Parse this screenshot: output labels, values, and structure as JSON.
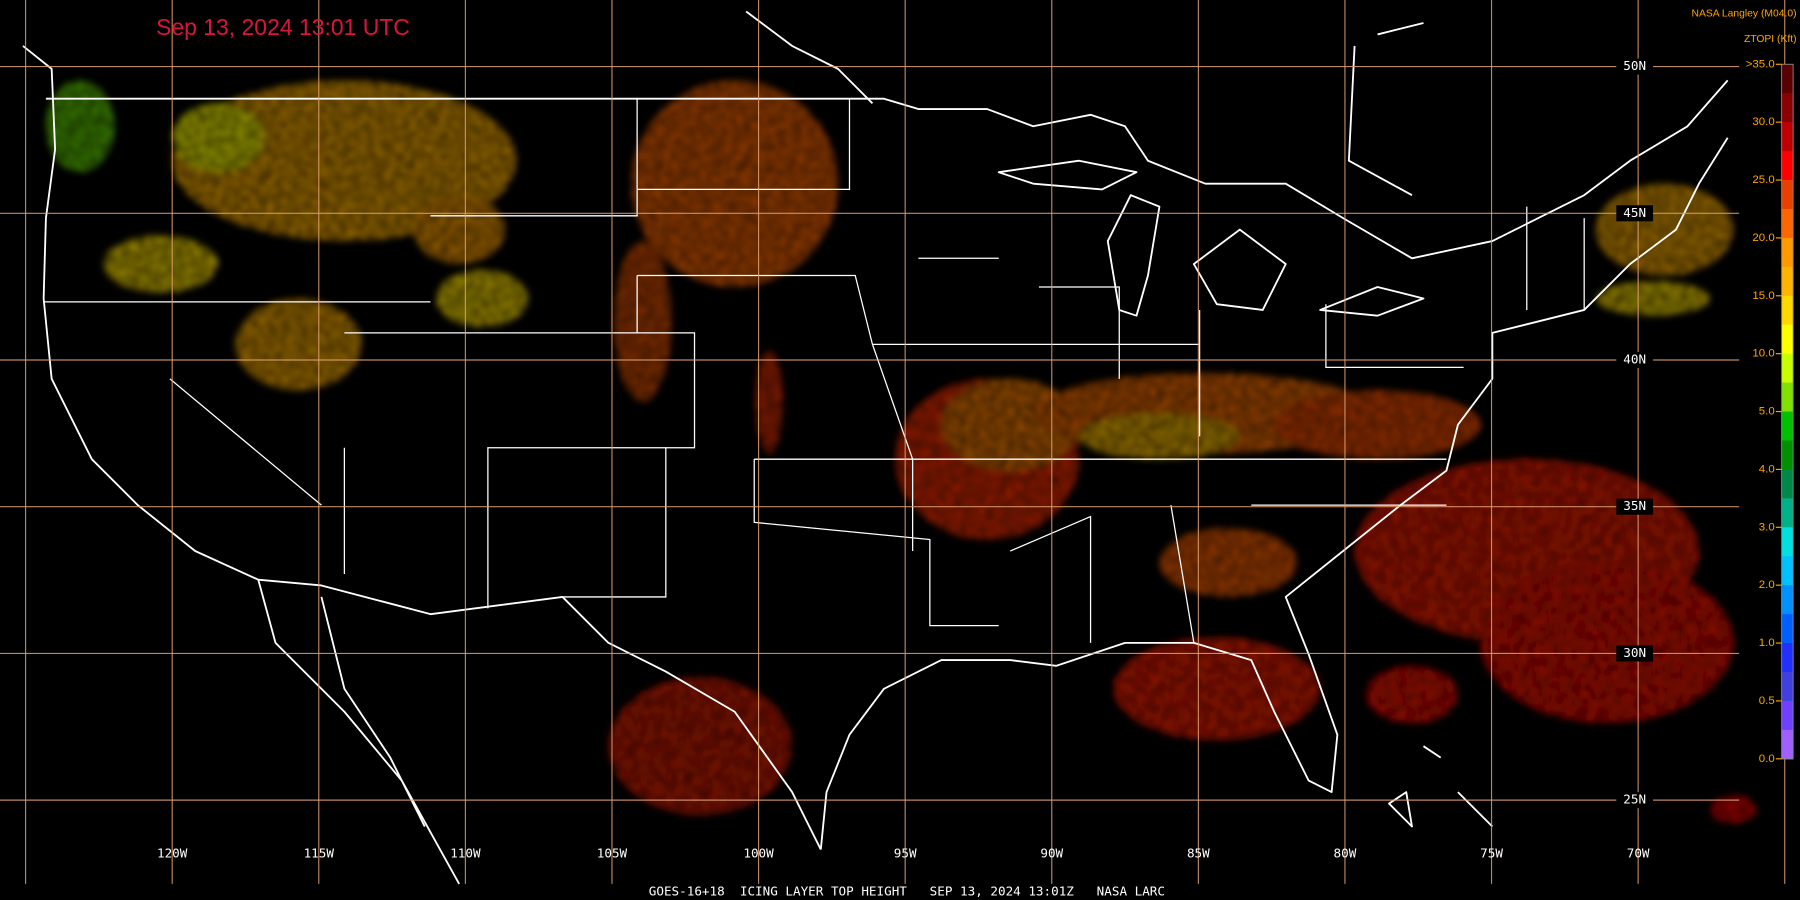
{
  "header": {
    "title": "Sep 13, 2024 13:01 UTC",
    "source": "NASA Langley (M04.0)",
    "product": "ZTOPI (Kft)"
  },
  "longitude_labels": [
    "120W",
    "115W",
    "110W",
    "105W",
    "100W",
    "95W",
    "90W",
    "85W",
    "80W",
    "75W",
    "70W"
  ],
  "latitude_labels": [
    "50N",
    "45N",
    "40N",
    "35N",
    "30N",
    "25N"
  ],
  "legend": {
    "labels": [
      ">35.0",
      "30.0",
      "25.0",
      "20.0",
      "15.0",
      "10.0",
      "5.0",
      "4.0",
      "3.0",
      "2.0",
      "1.0",
      "0.5",
      "0.0"
    ],
    "colors": [
      "#5a0000",
      "#8b0000",
      "#c00000",
      "#ff0000",
      "#e84000",
      "#ff6600",
      "#ff9900",
      "#ffb400",
      "#ffd800",
      "#ffff00",
      "#c8ff00",
      "#80e000",
      "#00c000",
      "#009000",
      "#008848",
      "#00b088",
      "#00e0e0",
      "#00c0ff",
      "#0090ff",
      "#0060ff",
      "#2030ff",
      "#4040e0",
      "#7040ff",
      "#a060ff"
    ]
  },
  "footer": "GOES-16+18  ICING LAYER TOP HEIGHT   SEP 13, 2024 13:01Z   NASA LARC"
}
